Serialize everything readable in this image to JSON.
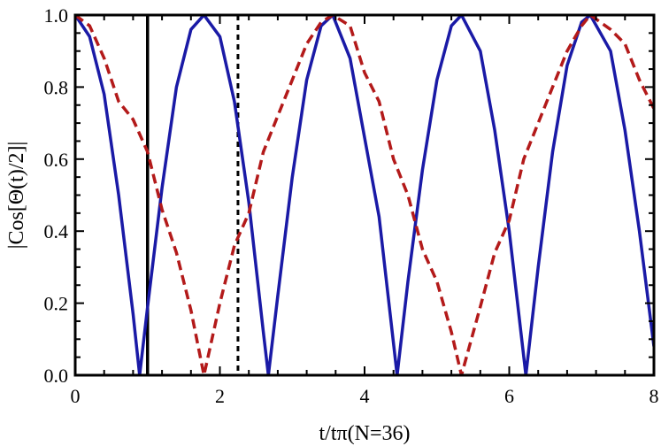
{
  "chart_data": {
    "type": "line",
    "title": "",
    "xlabel": "t/tπ(N=36)",
    "ylabel": "|Cos[Θ(t)/2]|",
    "xlim": [
      0,
      8
    ],
    "ylim": [
      0,
      1
    ],
    "x_ticks": [
      0,
      2,
      4,
      6,
      8
    ],
    "y_ticks": [
      0.0,
      0.2,
      0.4,
      0.6,
      0.8,
      1.0
    ],
    "x_tick_labels": [
      "0",
      "2",
      "4",
      "6",
      "8"
    ],
    "y_tick_labels": [
      "0.0",
      "0.2",
      "0.4",
      "0.6",
      "0.8",
      "1.0"
    ],
    "grid": false,
    "legend": "none",
    "series": [
      {
        "style": "solid",
        "color": "#1a1aa6",
        "x": [
          0,
          0.2,
          0.4,
          0.6,
          0.8,
          0.89,
          1.0,
          1.2,
          1.4,
          1.6,
          1.78,
          2.0,
          2.2,
          2.4,
          2.6,
          2.67,
          2.8,
          3.0,
          3.2,
          3.4,
          3.56,
          3.8,
          4.0,
          4.2,
          4.45,
          4.6,
          4.8,
          5.0,
          5.2,
          5.34,
          5.6,
          5.8,
          6.0,
          6.23,
          6.4,
          6.6,
          6.8,
          7.0,
          7.12,
          7.4,
          7.6,
          7.8,
          8.0
        ],
        "y": [
          1.0,
          0.94,
          0.78,
          0.5,
          0.17,
          0.0,
          0.19,
          0.52,
          0.8,
          0.96,
          1.0,
          0.94,
          0.76,
          0.48,
          0.12,
          0.0,
          0.22,
          0.55,
          0.82,
          0.97,
          1.0,
          0.88,
          0.66,
          0.44,
          0.0,
          0.26,
          0.57,
          0.82,
          0.97,
          1.0,
          0.9,
          0.68,
          0.4,
          0.0,
          0.3,
          0.62,
          0.86,
          0.98,
          1.0,
          0.9,
          0.68,
          0.4,
          0.08
        ]
      },
      {
        "style": "dashed",
        "color": "#b31a1a",
        "x": [
          0,
          0.2,
          0.4,
          0.6,
          0.8,
          1.0,
          1.2,
          1.4,
          1.6,
          1.78,
          2.0,
          2.2,
          2.4,
          2.6,
          2.8,
          3.0,
          3.2,
          3.4,
          3.56,
          3.8,
          4.0,
          4.2,
          4.4,
          4.6,
          4.8,
          5.0,
          5.2,
          5.34,
          5.6,
          5.8,
          6.0,
          6.2,
          6.4,
          6.6,
          6.8,
          7.0,
          7.12,
          7.4,
          7.6,
          7.8,
          8.0
        ],
        "y": [
          1.0,
          0.97,
          0.88,
          0.76,
          0.71,
          0.62,
          0.46,
          0.34,
          0.18,
          0.0,
          0.2,
          0.36,
          0.45,
          0.62,
          0.72,
          0.82,
          0.92,
          0.98,
          1.0,
          0.97,
          0.84,
          0.76,
          0.6,
          0.5,
          0.35,
          0.26,
          0.12,
          0.0,
          0.19,
          0.34,
          0.43,
          0.6,
          0.7,
          0.8,
          0.9,
          0.97,
          1.0,
          0.96,
          0.92,
          0.82,
          0.74
        ]
      }
    ],
    "vertical_lines": [
      {
        "x": 1.0,
        "style": "solid",
        "color": "#000000"
      },
      {
        "x": 2.25,
        "style": "dotted",
        "color": "#000000"
      }
    ]
  }
}
